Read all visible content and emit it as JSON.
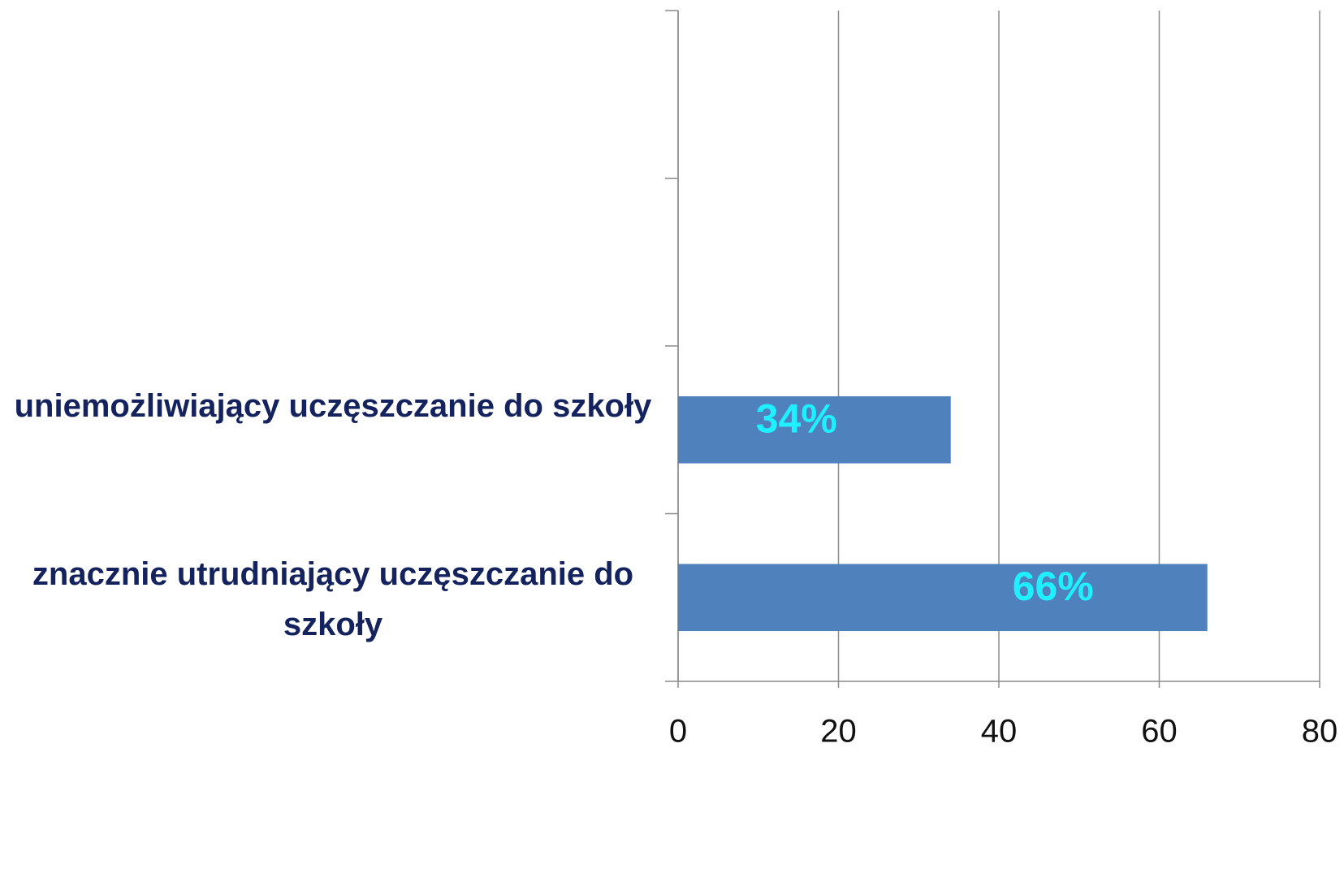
{
  "chart_data": {
    "type": "hbar",
    "categories": [
      null,
      null,
      "uniemożliwiający uczęszczanie do szkoły",
      "znacznie utrudniający uczęszczanie do szkoły"
    ],
    "values": [
      null,
      null,
      34,
      66
    ],
    "value_labels": [
      null,
      null,
      "34%",
      "66%"
    ],
    "color": "#4f81bd",
    "xlim": [
      0,
      80
    ],
    "xticks": [
      0,
      20,
      40,
      60,
      80
    ],
    "grid": true
  }
}
